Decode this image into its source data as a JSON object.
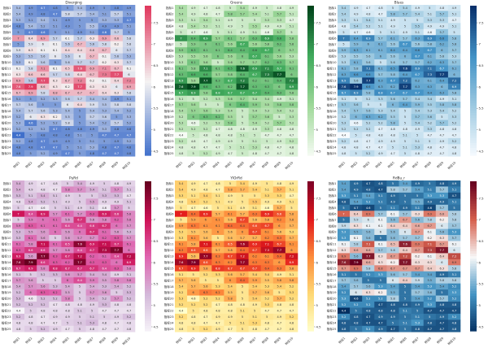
{
  "chart_data": [
    {
      "type": "heatmap",
      "title": "Diverging",
      "colormap": [
        "#3f6fcb",
        "#f4f2f2",
        "#e03a5f"
      ]
    },
    {
      "type": "heatmap",
      "title": "Greens",
      "colormap": [
        "#f7fcf5",
        "#a1d99b",
        "#41ab5d",
        "#00441b"
      ]
    },
    {
      "type": "heatmap",
      "title": "Blues",
      "colormap": [
        "#f7fbff",
        "#9ecae1",
        "#4292c6",
        "#08306b"
      ]
    },
    {
      "type": "heatmap",
      "title": "PuRd",
      "colormap": [
        "#f7f4f9",
        "#d4b9da",
        "#df65b0",
        "#ce1256",
        "#67001f"
      ]
    },
    {
      "type": "heatmap",
      "title": "YlOrRd",
      "colormap": [
        "#ffffcc",
        "#fed976",
        "#fd8d3c",
        "#e31a1c",
        "#800026"
      ]
    },
    {
      "type": "heatmap",
      "title": "RdBu_r",
      "colormap": [
        "#053061",
        "#4393c3",
        "#f7f7f7",
        "#d6604d",
        "#67001f"
      ]
    }
  ],
  "shared": {
    "vmin": 4.4,
    "vmax": 7.9,
    "colorbar_ticks": [
      4.5,
      5.0,
      5.5,
      6.0,
      6.5,
      7.0,
      7.5
    ],
    "row_labels": [
      "指标1",
      "指标2",
      "指标3",
      "指标4",
      "指标5",
      "指标6",
      "指标7",
      "指标8",
      "指标9",
      "指标10",
      "指标11",
      "指标12",
      "指标13",
      "指标14",
      "指标15",
      "指标16",
      "指标17",
      "指标18",
      "指标19",
      "指标20",
      "指标21",
      "指标22",
      "指标23",
      "指标24",
      "指标25"
    ],
    "col_labels": [
      "特征1",
      "特征2",
      "特征3",
      "特征4",
      "特征5",
      "特征6",
      "特征7",
      "特征8",
      "特征9",
      "特征10"
    ],
    "values": [
      [
        5.4,
        4.9,
        4.7,
        4.8,
        5.0,
        5.4,
        4.9,
        5.0,
        4.8,
        4.9
      ],
      [
        5.4,
        4.9,
        4.8,
        4.7,
        5.8,
        5.7,
        5.4,
        5.1,
        5.7,
        5.1
      ],
      [
        5.3,
        5.1,
        5.4,
        5.1,
        4.9,
        5.0,
        5.0,
        5.3,
        5.3,
        4.7
      ],
      [
        4.8,
        5.4,
        5.2,
        5.1,
        4.9,
        5.0,
        5.5,
        4.9,
        4.9,
        5.1
      ],
      [
        5.0,
        4.7,
        4.6,
        5.0,
        5.1,
        4.9,
        5.1,
        4.6,
        5.7,
        5.0
      ],
      [
        7.0,
        6.4,
        6.9,
        5.7,
        6.1,
        5.7,
        6.3,
        6.9,
        6.6,
        5.8
      ],
      [
        5.0,
        5.9,
        6.0,
        6.1,
        5.6,
        6.7,
        5.6,
        5.8,
        6.2,
        5.8
      ],
      [
        5.9,
        6.3,
        6.1,
        6.1,
        6.4,
        6.4,
        6.6,
        6.7,
        6.0,
        5.7
      ],
      [
        5.3,
        5.5,
        5.6,
        6.0,
        5.6,
        6.0,
        6.7,
        6.1,
        5.6,
        5.3
      ],
      [
        5.3,
        6.1,
        5.6,
        5.0,
        5.6,
        5.7,
        5.7,
        6.2,
        6.3,
        5.7
      ],
      [
        6.1,
        5.8,
        7.1,
        6.1,
        6.5,
        7.6,
        6.9,
        7.1,
        6.7,
        6.1
      ],
      [
        6.3,
        6.6,
        6.6,
        5.7,
        5.8,
        6.4,
        6.7,
        7.3,
        7.7,
        6.0
      ],
      [
        6.9,
        5.6,
        7.7,
        6.3,
        6.7,
        7.2,
        6.2,
        6.1,
        6.4,
        7.2
      ],
      [
        7.6,
        7.9,
        6.6,
        6.3,
        6.2,
        7.7,
        6.3,
        6.3,
        6.0,
        6.9
      ],
      [
        6.7,
        6.9,
        5.8,
        6.8,
        6.7,
        6.7,
        6.7,
        6.4,
        6.3,
        5.8
      ],
      [
        5.1,
        5.0,
        5.2,
        5.3,
        5.6,
        5.7,
        5.4,
        5.4,
        4.9,
        5.1
      ],
      [
        5.7,
        5.6,
        5.0,
        5.0,
        6.0,
        6.4,
        5.9,
        5.5,
        5.8,
        5.8
      ],
      [
        5.4,
        5.7,
        5.6,
        5.3,
        5.4,
        5.0,
        5.4,
        5.3,
        5.4,
        5.2
      ],
      [
        5.2,
        6.0,
        6.3,
        6.2,
        5.5,
        5.0,
        5.7,
        5.6,
        5.0,
        5.3
      ],
      [
        5.3,
        4.6,
        5.2,
        5.2,
        5.8,
        5.0,
        5.4,
        5.2,
        5.7,
        5.2
      ],
      [
        5.2,
        5.2,
        5.2,
        4.7,
        4.8,
        4.8,
        4.9,
        5.3,
        4.8,
        4.8
      ],
      [
        4.4,
        5.0,
        4.8,
        4.8,
        4.8,
        5.1,
        5.0,
        4.7,
        4.7,
        4.7
      ],
      [
        5.2,
        4.8,
        4.7,
        4.9,
        4.9,
        5.0,
        5.1,
        5.0,
        4.9,
        5.2
      ],
      [
        4.8,
        4.8,
        4.7,
        4.7,
        5.0,
        5.1,
        5.3,
        4.8,
        4.7,
        4.8
      ],
      [
        4.8,
        5.0,
        5.2,
        4.9,
        4.7,
        5.0,
        4.8,
        4.7,
        4.7,
        4.8
      ]
    ]
  }
}
